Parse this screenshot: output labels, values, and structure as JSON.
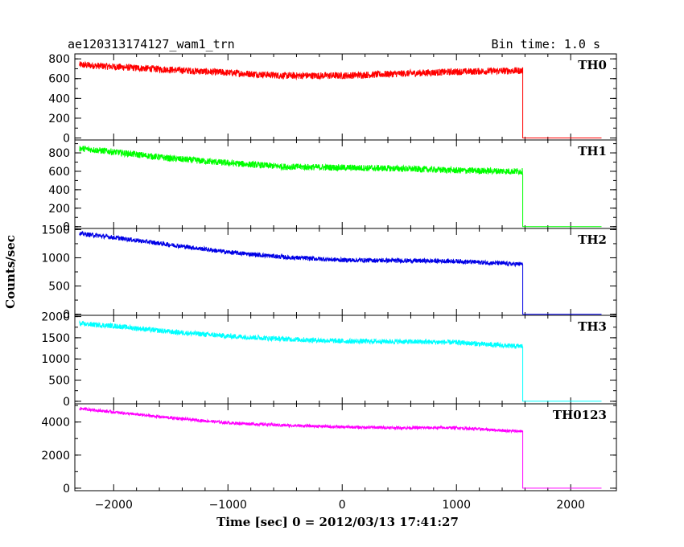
{
  "header": {
    "title": "ae120313174127_wam1_trn",
    "bin_time": "Bin time: 1.0 s"
  },
  "chart_data": {
    "type": "line",
    "xlabel": "Time [sec] 0 = 2012/03/13 17:41:27",
    "ylabel": "Counts/sec",
    "xlim": [
      -2340,
      2400
    ],
    "xticks": [
      -2000,
      -1000,
      0,
      1000,
      2000
    ],
    "x_range_data": [
      -2300,
      2270
    ],
    "drop_time": 1580,
    "series": [
      {
        "name": "TH0",
        "color": "#ff0000",
        "ylim": [
          -20,
          850
        ],
        "yticks": [
          0,
          200,
          400,
          600,
          800
        ],
        "x": [
          -2300,
          -2000,
          -1500,
          -1000,
          -500,
          0,
          500,
          1000,
          1500,
          1580,
          2270
        ],
        "values": [
          740,
          720,
          690,
          660,
          630,
          630,
          650,
          670,
          680,
          0,
          0
        ],
        "noise": 35
      },
      {
        "name": "TH1",
        "color": "#00ff00",
        "ylim": [
          -20,
          940
        ],
        "yticks": [
          0,
          200,
          400,
          600,
          800
        ],
        "x": [
          -2300,
          -2000,
          -1500,
          -1000,
          -500,
          0,
          500,
          1000,
          1500,
          1580,
          2270
        ],
        "values": [
          850,
          810,
          740,
          690,
          650,
          640,
          630,
          610,
          600,
          0,
          0
        ],
        "noise": 35
      },
      {
        "name": "TH2",
        "color": "#0000e6",
        "ylim": [
          -20,
          1520
        ],
        "yticks": [
          0,
          500,
          1000,
          1500
        ],
        "x": [
          -2300,
          -2000,
          -1500,
          -1000,
          -500,
          0,
          500,
          1000,
          1500,
          1580,
          2270
        ],
        "values": [
          1430,
          1360,
          1230,
          1100,
          1010,
          960,
          950,
          940,
          890,
          0,
          0
        ],
        "noise": 40
      },
      {
        "name": "TH3",
        "color": "#00ffff",
        "ylim": [
          -60,
          2030
        ],
        "yticks": [
          0,
          500,
          1000,
          1500,
          2000
        ],
        "x": [
          -2300,
          -2000,
          -1500,
          -1000,
          -500,
          0,
          500,
          1000,
          1500,
          1580,
          2270
        ],
        "values": [
          1830,
          1780,
          1640,
          1540,
          1470,
          1420,
          1410,
          1390,
          1300,
          0,
          0
        ],
        "noise": 60
      },
      {
        "name": "TH0123",
        "color": "#ff00ff",
        "ylim": [
          -150,
          5100
        ],
        "yticks": [
          0,
          2000,
          4000
        ],
        "x": [
          -2300,
          -2000,
          -1500,
          -1000,
          -500,
          0,
          500,
          1000,
          1500,
          1580,
          2270
        ],
        "values": [
          4820,
          4600,
          4250,
          3950,
          3800,
          3700,
          3650,
          3650,
          3450,
          0,
          0
        ],
        "noise": 90
      }
    ]
  }
}
